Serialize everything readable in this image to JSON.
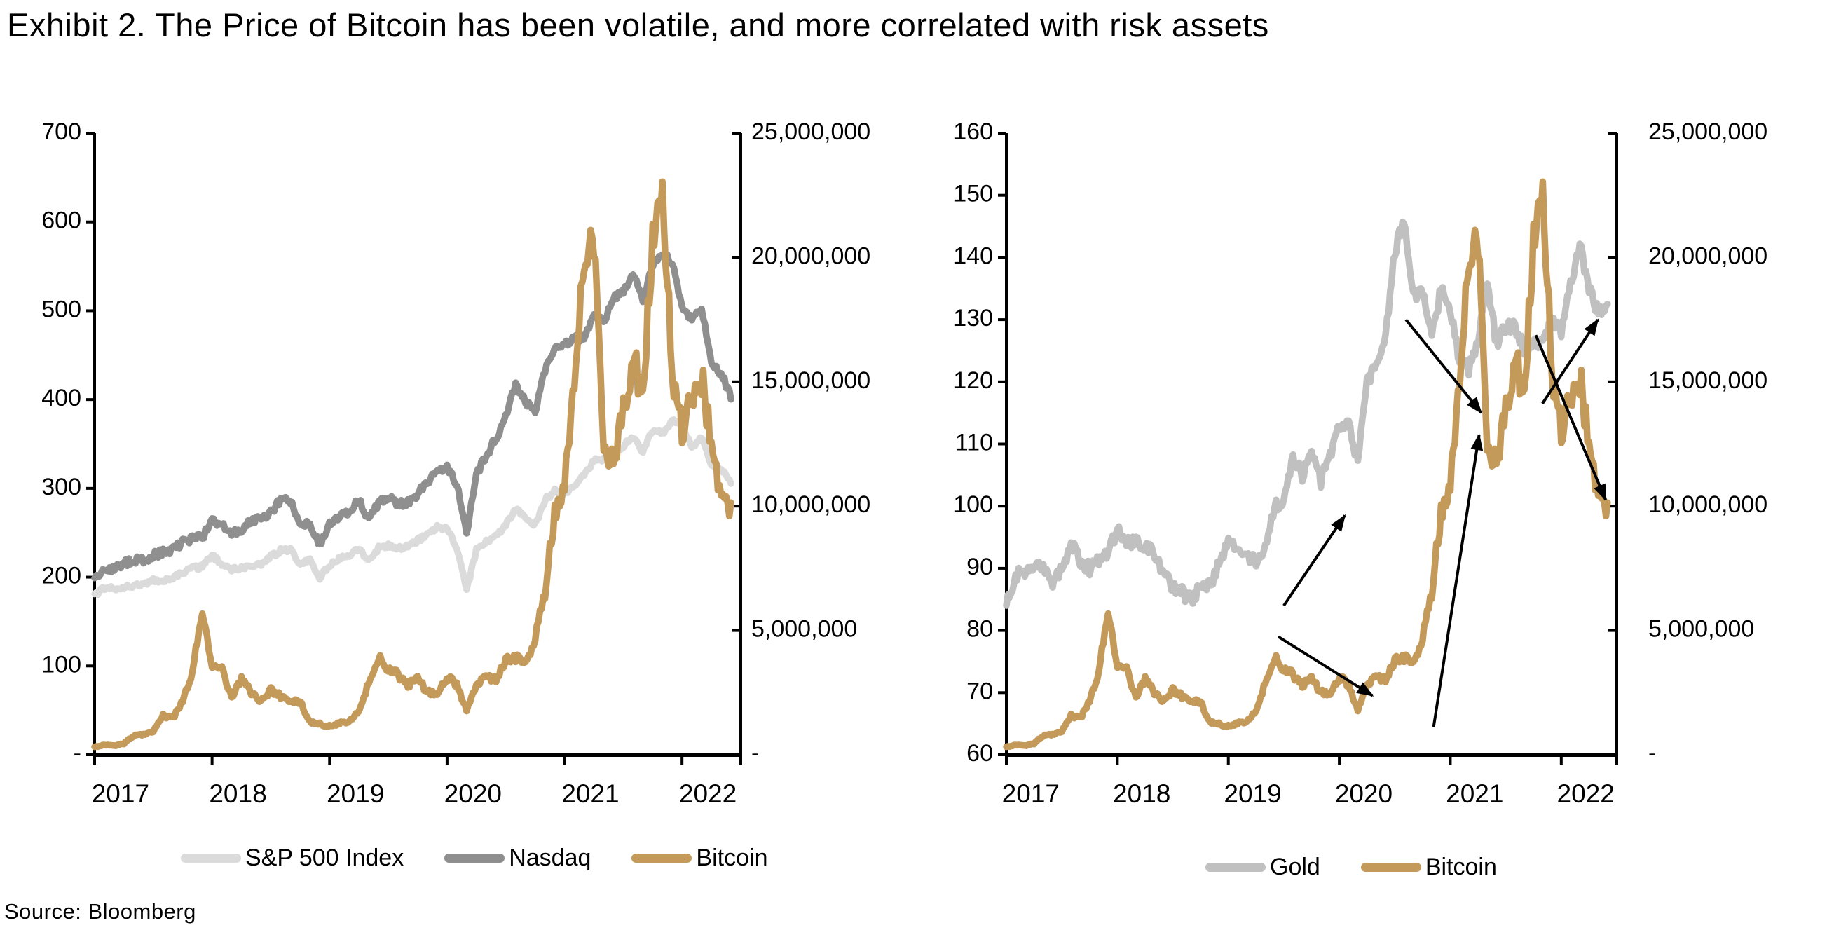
{
  "title": "Exhibit 2. The Price of Bitcoin has been volatile, and more correlated with risk assets",
  "source": "Source: Bloomberg",
  "colors": {
    "sp500": "#DBDBDB",
    "nasdaq": "#8F8F8F",
    "bitcoin": "#C49A5B",
    "gold": "#C0C0C0",
    "axis": "#000000",
    "arrow": "#000000",
    "background": "#FFFFFF"
  },
  "chart_data": [
    {
      "type": "line",
      "panel": "left",
      "x_labels": [
        "2017",
        "2018",
        "2019",
        "2020",
        "2021",
        "2022"
      ],
      "left_axis": {
        "min": 0,
        "max": 700,
        "tick_labels": [
          "700",
          "600",
          "500",
          "400",
          "300",
          "200",
          "100",
          "-"
        ]
      },
      "right_axis": {
        "min": 0,
        "max": 25000000,
        "unit": "millions",
        "tick_labels": [
          "25,000,000",
          "20,000,000",
          "15,000,000",
          "10,000,000",
          "5,000,000",
          "-"
        ]
      },
      "legend": [
        {
          "label": "S&P 500 Index",
          "color_key": "sp500"
        },
        {
          "label": "Nasdaq",
          "color_key": "nasdaq"
        },
        {
          "label": "Bitcoin",
          "color_key": "bitcoin"
        }
      ],
      "series": [
        {
          "name": "S&P 500 Index",
          "axis": "left",
          "color_key": "sp500",
          "start": "2017-01",
          "interval": "monthly",
          "values": [
            181,
            187,
            187,
            189,
            191,
            192,
            196,
            196,
            200,
            204,
            210,
            212,
            224,
            215,
            209,
            210,
            214,
            215,
            223,
            230,
            231,
            215,
            219,
            199,
            214,
            221,
            224,
            233,
            218,
            233,
            236,
            232,
            236,
            241,
            249,
            256,
            256,
            234,
            185,
            231,
            241,
            246,
            259,
            277,
            266,
            259,
            287,
            297,
            294,
            302,
            315,
            331,
            333,
            340,
            348,
            358,
            341,
            365,
            362,
            377,
            370,
            346,
            359,
            327,
            322,
            308
          ]
        },
        {
          "name": "Nasdaq",
          "axis": "left",
          "color_key": "nasdaq",
          "start": "2017-01",
          "interval": "monthly",
          "values": [
            199,
            207,
            210,
            215,
            220,
            218,
            225,
            228,
            231,
            239,
            244,
            245,
            263,
            258,
            251,
            251,
            264,
            267,
            272,
            288,
            286,
            259,
            260,
            236,
            259,
            267,
            274,
            287,
            265,
            284,
            290,
            283,
            284,
            294,
            308,
            319,
            325,
            304,
            250,
            316,
            337,
            357,
            381,
            418,
            397,
            387,
            433,
            458,
            464,
            468,
            470,
            496,
            488,
            515,
            521,
            542,
            513,
            550,
            565,
            555,
            506,
            488,
            505,
            438,
            429,
            404
          ]
        },
        {
          "name": "Bitcoin",
          "axis": "right",
          "color_key": "bitcoin",
          "start": "2017-01",
          "interval": "monthly",
          "value_unit": "millions",
          "values": [
            0.32,
            0.4,
            0.36,
            0.45,
            0.77,
            0.83,
            0.96,
            1.57,
            1.45,
            2.16,
            3.32,
            5.9,
            3.42,
            3.45,
            2.31,
            3.08,
            2.51,
            2.14,
            2.61,
            2.35,
            2.21,
            2.11,
            1.34,
            1.24,
            1.14,
            1.27,
            1.37,
            1.78,
            2.85,
            3.95,
            3.38,
            3.22,
            2.78,
            3.08,
            2.51,
            2.41,
            3.12,
            2.85,
            1.75,
            2.88,
            3.15,
            3.05,
            3.79,
            3.92,
            3.62,
            4.62,
            6.6,
            9.72,
            11.1,
            15.1,
            19.7,
            20.8,
            12.5,
            11.7,
            13.9,
            15.8,
            14.7,
            20.5,
            22.3,
            15.5,
            12.9,
            14.5,
            15.2,
            12.6,
            10.2,
            9.7
          ]
        }
      ]
    },
    {
      "type": "line",
      "panel": "right",
      "x_labels": [
        "2017",
        "2018",
        "2019",
        "2020",
        "2021",
        "2022"
      ],
      "left_axis": {
        "min": 60,
        "max": 160,
        "tick_labels": [
          "160",
          "150",
          "140",
          "130",
          "120",
          "110",
          "100",
          "90",
          "80",
          "70",
          "60"
        ]
      },
      "right_axis": {
        "min": 0,
        "max": 25000000,
        "unit": "millions",
        "tick_labels": [
          "25,000,000",
          "20,000,000",
          "15,000,000",
          "10,000,000",
          "5,000,000",
          "-"
        ]
      },
      "legend": [
        {
          "label": "Gold",
          "color_key": "gold"
        },
        {
          "label": "Bitcoin",
          "color_key": "bitcoin"
        }
      ],
      "series": [
        {
          "name": "Gold",
          "axis": "left",
          "color_key": "gold",
          "start": "2017-01",
          "interval": "monthly",
          "values": [
            84,
            89,
            89,
            90,
            90,
            88,
            90,
            94,
            91,
            90,
            91,
            93,
            96,
            94,
            94,
            94,
            92,
            89,
            87,
            86,
            85,
            87,
            87,
            91,
            94,
            93,
            92,
            91,
            93,
            100,
            101,
            108,
            105,
            108,
            104,
            108,
            113,
            113,
            107,
            120,
            123,
            127,
            141,
            146,
            134,
            134,
            127,
            135,
            132,
            123,
            122,
            126,
            136,
            126,
            129,
            129,
            125,
            127,
            126,
            130,
            128,
            136,
            142,
            135,
            131,
            132
          ]
        },
        {
          "name": "Bitcoin",
          "axis": "right",
          "color_key": "bitcoin",
          "start": "2017-01",
          "interval": "monthly",
          "value_unit": "millions",
          "values": [
            0.32,
            0.4,
            0.36,
            0.45,
            0.77,
            0.83,
            0.96,
            1.57,
            1.45,
            2.16,
            3.32,
            5.9,
            3.42,
            3.45,
            2.31,
            3.08,
            2.51,
            2.14,
            2.61,
            2.35,
            2.21,
            2.11,
            1.34,
            1.24,
            1.14,
            1.27,
            1.37,
            1.78,
            2.85,
            3.95,
            3.38,
            3.22,
            2.78,
            3.08,
            2.51,
            2.41,
            3.12,
            2.85,
            1.75,
            2.88,
            3.15,
            3.05,
            3.79,
            3.92,
            3.62,
            4.62,
            6.6,
            9.72,
            11.1,
            15.1,
            19.7,
            20.8,
            12.5,
            11.7,
            13.9,
            15.8,
            14.7,
            20.5,
            22.3,
            15.5,
            12.9,
            14.5,
            15.2,
            12.6,
            10.2,
            9.7
          ]
        }
      ],
      "arrows": [
        {
          "x1": 2.5,
          "y1": 84.0,
          "x2": 3.05,
          "y2": 98.5
        },
        {
          "x1": 2.45,
          "y1": 79.0,
          "x2": 3.3,
          "y2": 69.5
        },
        {
          "x1": 3.6,
          "y1": 130.0,
          "x2": 4.28,
          "y2": 115.0
        },
        {
          "x1": 3.85,
          "y1": 64.5,
          "x2": 4.26,
          "y2": 111.5
        },
        {
          "x1": 4.83,
          "y1": 116.5,
          "x2": 5.33,
          "y2": 130.0
        },
        {
          "x1": 4.77,
          "y1": 127.5,
          "x2": 5.4,
          "y2": 101.0
        }
      ]
    }
  ]
}
